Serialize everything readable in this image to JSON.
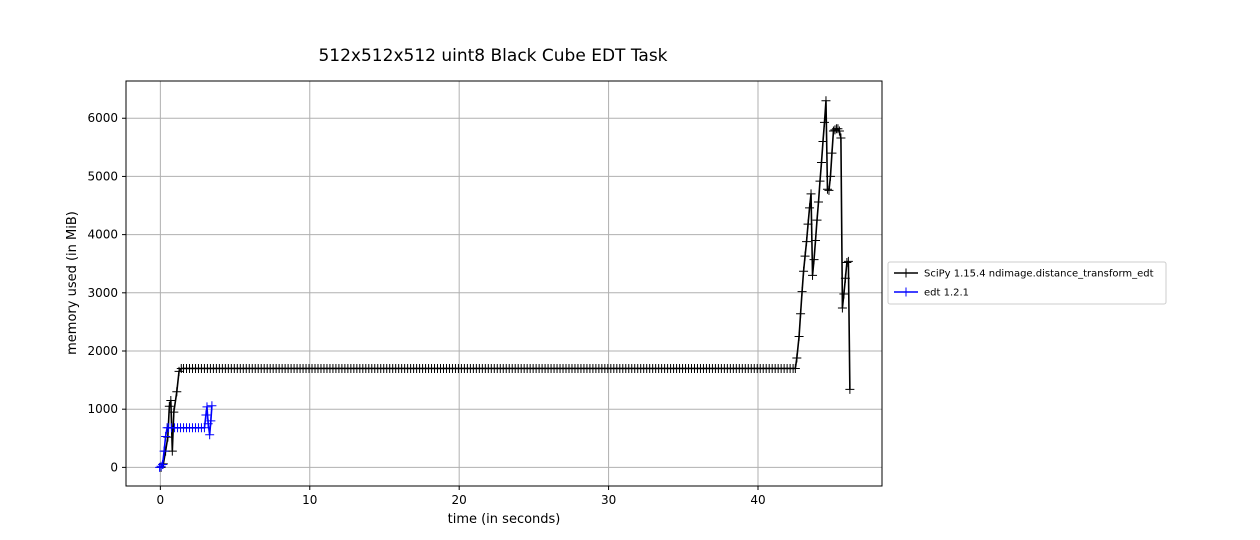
{
  "chart_data": {
    "type": "line",
    "title": "512x512x512 uint8 Black Cube EDT Task",
    "xlabel": "time (in seconds)",
    "ylabel": "memory used (in MiB)",
    "xlim": [
      -2.3,
      48.3
    ],
    "ylim": [
      -320,
      6640
    ],
    "xticks": [
      0,
      10,
      20,
      30,
      40
    ],
    "yticks": [
      0,
      1000,
      2000,
      3000,
      4000,
      5000,
      6000
    ],
    "grid": true,
    "legend_position": "right",
    "series": [
      {
        "name": "SciPy 1.15.4 ndimage.distance_transform_edt",
        "color": "#000000",
        "marker": "+",
        "head": [
          [
            0.05,
            0
          ],
          [
            0.2,
            60
          ],
          [
            0.35,
            280
          ],
          [
            0.5,
            520
          ],
          [
            0.6,
            1050
          ],
          [
            0.7,
            1150
          ],
          [
            0.8,
            280
          ],
          [
            0.9,
            950
          ],
          [
            1.1,
            1300
          ],
          [
            1.25,
            1650
          ],
          [
            1.4,
            1700
          ]
        ],
        "plateau": {
          "x_start": 1.55,
          "x_end": 42.4,
          "step": 0.2,
          "y": 1700
        },
        "tail": [
          [
            42.5,
            1700
          ],
          [
            42.6,
            1880
          ],
          [
            42.75,
            2250
          ],
          [
            42.85,
            2640
          ],
          [
            42.95,
            3020
          ],
          [
            43.05,
            3370
          ],
          [
            43.15,
            3630
          ],
          [
            43.25,
            3880
          ],
          [
            43.35,
            4180
          ],
          [
            43.45,
            4460
          ],
          [
            43.55,
            4700
          ],
          [
            43.65,
            3300
          ],
          [
            43.75,
            3570
          ],
          [
            43.85,
            3900
          ],
          [
            43.95,
            4250
          ],
          [
            44.05,
            4560
          ],
          [
            44.15,
            4920
          ],
          [
            44.25,
            5240
          ],
          [
            44.35,
            5600
          ],
          [
            44.45,
            5930
          ],
          [
            44.55,
            6300
          ],
          [
            44.65,
            4780
          ],
          [
            44.75,
            4760
          ],
          [
            44.85,
            5000
          ],
          [
            44.95,
            5400
          ],
          [
            45.05,
            5780
          ],
          [
            45.15,
            5800
          ],
          [
            45.25,
            5820
          ],
          [
            45.35,
            5820
          ],
          [
            45.45,
            5780
          ],
          [
            45.55,
            5660
          ],
          [
            45.65,
            2740
          ],
          [
            45.75,
            2980
          ],
          [
            45.85,
            3250
          ],
          [
            45.95,
            3520
          ],
          [
            46.05,
            3540
          ],
          [
            46.15,
            1340
          ]
        ]
      },
      {
        "name": "edt 1.2.1",
        "color": "#0000ff",
        "marker": "+",
        "head": [
          [
            -0.05,
            0
          ],
          [
            0.05,
            20
          ],
          [
            0.15,
            50
          ],
          [
            0.25,
            280
          ],
          [
            0.35,
            530
          ],
          [
            0.45,
            680
          ]
        ],
        "plateau": {
          "x_start": 0.55,
          "x_end": 2.95,
          "step": 0.2,
          "y": 680
        },
        "tail": [
          [
            3.05,
            900
          ],
          [
            3.12,
            1040
          ],
          [
            3.2,
            750
          ],
          [
            3.3,
            560
          ],
          [
            3.38,
            800
          ],
          [
            3.45,
            1060
          ]
        ]
      }
    ]
  }
}
